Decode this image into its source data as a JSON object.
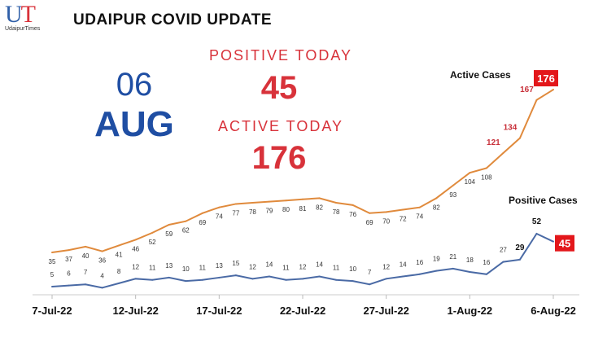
{
  "logo": {
    "text": "UdaipurTimes"
  },
  "header": {
    "title": "UDAIPUR COVID UPDATE"
  },
  "date": {
    "day": "06",
    "month": "AUG"
  },
  "summary": {
    "positive_label": "POSITIVE TODAY",
    "positive_value": "45",
    "active_label": "ACTIVE TODAY",
    "active_value": "176"
  },
  "chart_data": {
    "type": "line",
    "x": [
      "7-Jul-22",
      "8-Jul-22",
      "9-Jul-22",
      "10-Jul-22",
      "11-Jul-22",
      "12-Jul-22",
      "13-Jul-22",
      "14-Jul-22",
      "15-Jul-22",
      "16-Jul-22",
      "17-Jul-22",
      "18-Jul-22",
      "19-Jul-22",
      "20-Jul-22",
      "21-Jul-22",
      "22-Jul-22",
      "23-Jul-22",
      "24-Jul-22",
      "25-Jul-22",
      "26-Jul-22",
      "27-Jul-22",
      "28-Jul-22",
      "29-Jul-22",
      "30-Jul-22",
      "31-Jul-22",
      "1-Aug-22",
      "2-Aug-22",
      "3-Aug-22",
      "4-Aug-22",
      "5-Aug-22",
      "6-Aug-22"
    ],
    "xticks": [
      "7-Jul-22",
      "12-Jul-22",
      "17-Jul-22",
      "22-Jul-22",
      "27-Jul-22",
      "1-Aug-22",
      "6-Aug-22"
    ],
    "series": [
      {
        "name": "Active Cases",
        "color": "#e08a3c",
        "values": [
          35,
          37,
          40,
          36,
          41,
          46,
          52,
          59,
          62,
          69,
          74,
          77,
          78,
          79,
          80,
          81,
          82,
          78,
          76,
          69,
          70,
          72,
          74,
          82,
          93,
          104,
          108,
          121,
          134,
          167,
          176
        ]
      },
      {
        "name": "Positive Cases",
        "color": "#4a6aa5",
        "values": [
          5,
          6,
          7,
          4,
          8,
          12,
          11,
          13,
          10,
          11,
          13,
          15,
          12,
          14,
          11,
          12,
          14,
          11,
          10,
          7,
          12,
          14,
          16,
          19,
          21,
          18,
          16,
          27,
          29,
          52,
          45
        ]
      }
    ],
    "grid": false,
    "legend": "inline-labels",
    "highlight_color": "#e3171b"
  }
}
